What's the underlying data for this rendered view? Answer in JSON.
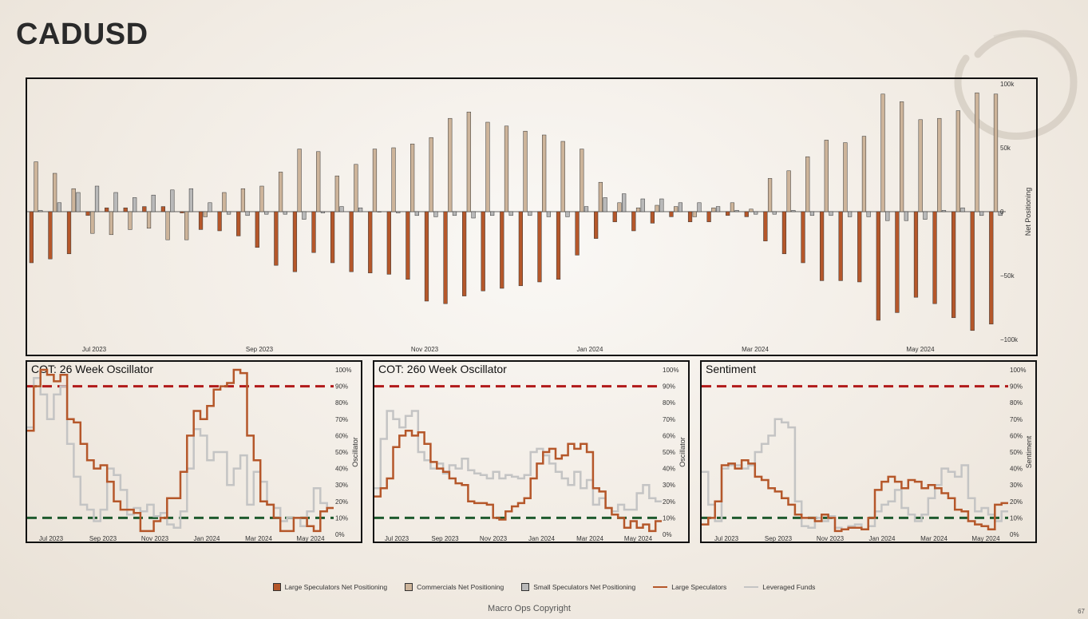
{
  "page": {
    "title": "CADUSD",
    "footer": "Macro Ops Copyright",
    "page_number": "67"
  },
  "colors": {
    "large": "#b5572a",
    "commercial": "#cdb49a",
    "small": "#b9b9b9",
    "leveraged": "#c4c4c4",
    "high": "#b11a1a",
    "low": "#1e5a2e"
  },
  "legend": [
    {
      "label": "Large Speculators Net Positioning",
      "kind": "box",
      "color": "#b5572a"
    },
    {
      "label": "Commercials Net Positioning",
      "kind": "box",
      "color": "#cdb49a"
    },
    {
      "label": "Small Speculators Net Positioning",
      "kind": "box",
      "color": "#b9b9b9"
    },
    {
      "label": "Large Speculators",
      "kind": "line",
      "color": "#b5572a"
    },
    {
      "label": "Leveraged Funds",
      "kind": "line",
      "color": "#c4c4c4"
    }
  ],
  "chart_data": [
    {
      "type": "bar",
      "ylabel": "Net Positioning",
      "y_ticks": [
        "100k",
        "50k",
        "0",
        "−50k",
        "−100k"
      ],
      "ylim": [
        -100000,
        100000
      ],
      "x_ticks": [
        "Jul 2023",
        "Sep 2023",
        "Nov 2023",
        "Jan 2024",
        "Mar 2024",
        "May 2024"
      ],
      "series": [
        {
          "name": "Large Speculators Net Positioning",
          "values": [
            -40000,
            -37000,
            -33000,
            -3000,
            3000,
            3000,
            4000,
            4000,
            -1000,
            -14000,
            -15000,
            -19000,
            -28000,
            -42000,
            -47000,
            -32000,
            -40000,
            -47000,
            -48000,
            -49000,
            -53000,
            -70000,
            -72000,
            -66000,
            -62000,
            -60000,
            -58000,
            -55000,
            -53000,
            -34000,
            -21000,
            -8000,
            -15000,
            -9000,
            -4000,
            -8000,
            -8000,
            -3000,
            -4000,
            -23000,
            -33000,
            -40000,
            -54000,
            -54000,
            -55000,
            -85000,
            -79000,
            -67000,
            -72000,
            -83000,
            -93000,
            -88000
          ]
        },
        {
          "name": "Commercials Net Positioning",
          "values": [
            39000,
            30000,
            18000,
            -17000,
            -18000,
            -14000,
            -13000,
            -22000,
            -22000,
            -4000,
            15000,
            18000,
            20000,
            31000,
            49000,
            47000,
            28000,
            37000,
            49000,
            50000,
            53000,
            58000,
            73000,
            78000,
            70000,
            67000,
            63000,
            60000,
            55000,
            49000,
            23000,
            7000,
            3000,
            5000,
            4000,
            -4000,
            3000,
            7000,
            2000,
            26000,
            32000,
            43000,
            56000,
            54000,
            59000,
            92000,
            86000,
            72000,
            73000,
            79000,
            93000,
            92000
          ]
        },
        {
          "name": "Small Speculators Net Positioning",
          "values": [
            1000,
            7000,
            15000,
            20000,
            15000,
            11000,
            13000,
            17000,
            18000,
            7000,
            -2000,
            -3000,
            -2000,
            -2000,
            -6000,
            -1000,
            4000,
            3000,
            0,
            -1000,
            -3000,
            -4000,
            -3000,
            -5000,
            -3000,
            -3000,
            -3000,
            -4000,
            -4000,
            4000,
            11000,
            14000,
            10000,
            10000,
            7000,
            7000,
            4000,
            1000,
            -2000,
            -2000,
            1000,
            -3000,
            -3000,
            -4000,
            -4000,
            -7000,
            -7000,
            -6000,
            1000,
            3000,
            -3000,
            -3000
          ]
        }
      ]
    },
    {
      "type": "line",
      "title": "COT: 26 Week Oscillator",
      "ylabel": "Oscillator",
      "y_ticks": [
        "100%",
        "90%",
        "80%",
        "70%",
        "60%",
        "50%",
        "40%",
        "30%",
        "20%",
        "10%",
        "0%"
      ],
      "x_ticks": [
        "Jul 2023",
        "Sep 2023",
        "Nov 2023",
        "Jan 2024",
        "Mar 2024",
        "May 2024"
      ],
      "ylim": [
        0,
        100
      ],
      "thresholds": [
        90,
        10
      ],
      "series": [
        {
          "name": "Large Speculators",
          "values": [
            63,
            90,
            100,
            97,
            93,
            97,
            70,
            68,
            55,
            45,
            40,
            42,
            32,
            20,
            15,
            15,
            13,
            2,
            2,
            8,
            10,
            22,
            22,
            38,
            60,
            75,
            70,
            78,
            88,
            90,
            92,
            100,
            98,
            60,
            45,
            20,
            18,
            10,
            2,
            2,
            10,
            10,
            5,
            2,
            14,
            16
          ]
        },
        {
          "name": "Leveraged Funds",
          "values": [
            65,
            95,
            85,
            70,
            85,
            90,
            55,
            35,
            18,
            15,
            8,
            15,
            40,
            36,
            27,
            12,
            16,
            14,
            18,
            11,
            13,
            6,
            4,
            14,
            40,
            64,
            60,
            45,
            50,
            50,
            30,
            40,
            48,
            18,
            38,
            32,
            18,
            16,
            8,
            10,
            10,
            5,
            14,
            28,
            19,
            16
          ]
        }
      ]
    },
    {
      "type": "line",
      "title": "COT: 260 Week Oscillator",
      "ylabel": "Oscillator",
      "y_ticks": [
        "100%",
        "90%",
        "80%",
        "70%",
        "60%",
        "50%",
        "40%",
        "30%",
        "20%",
        "10%",
        "0%"
      ],
      "x_ticks": [
        "Jul 2023",
        "Sep 2023",
        "Nov 2023",
        "Jan 2024",
        "Mar 2024",
        "May 2024"
      ],
      "ylim": [
        0,
        100
      ],
      "thresholds": [
        90,
        10
      ],
      "series": [
        {
          "name": "Large Speculators",
          "values": [
            23,
            28,
            34,
            53,
            60,
            63,
            60,
            62,
            55,
            44,
            40,
            38,
            34,
            31,
            30,
            20,
            19,
            19,
            18,
            10,
            9,
            14,
            17,
            19,
            22,
            34,
            43,
            50,
            52,
            46,
            48,
            55,
            52,
            55,
            50,
            28,
            26,
            16,
            12,
            10,
            4,
            8,
            4,
            6,
            2,
            8
          ]
        },
        {
          "name": "Leveraged Funds",
          "values": [
            28,
            58,
            75,
            70,
            65,
            72,
            75,
            50,
            45,
            40,
            43,
            37,
            42,
            40,
            46,
            39,
            37,
            36,
            34,
            38,
            34,
            36,
            35,
            34,
            36,
            50,
            52,
            48,
            43,
            38,
            34,
            30,
            38,
            28,
            33,
            18,
            22,
            16,
            14,
            18,
            15,
            15,
            25,
            30,
            22,
            20
          ]
        }
      ]
    },
    {
      "type": "line",
      "title": "Sentiment",
      "ylabel": "Sentiment",
      "y_ticks": [
        "100%",
        "90%",
        "80%",
        "70%",
        "60%",
        "50%",
        "40%",
        "30%",
        "20%",
        "10%",
        "0%"
      ],
      "x_ticks": [
        "Jul 2023",
        "Sep 2023",
        "Nov 2023",
        "Jan 2024",
        "Mar 2024",
        "May 2024"
      ],
      "ylim": [
        0,
        100
      ],
      "thresholds": [
        90,
        10
      ],
      "series": [
        {
          "name": "Large Speculators",
          "values": [
            6,
            10,
            20,
            42,
            43,
            40,
            45,
            43,
            35,
            33,
            28,
            26,
            22,
            18,
            12,
            10,
            10,
            8,
            12,
            10,
            2,
            3,
            4,
            4,
            3,
            10,
            27,
            32,
            35,
            32,
            28,
            33,
            32,
            28,
            30,
            28,
            25,
            22,
            15,
            14,
            8,
            6,
            5,
            3,
            18,
            19
          ]
        },
        {
          "name": "Leveraged Funds",
          "values": [
            38,
            18,
            8,
            40,
            42,
            42,
            40,
            42,
            50,
            55,
            60,
            70,
            68,
            65,
            20,
            5,
            4,
            10,
            8,
            11,
            4,
            3,
            5,
            6,
            3,
            5,
            14,
            18,
            20,
            27,
            16,
            12,
            8,
            12,
            22,
            30,
            40,
            38,
            35,
            42,
            22,
            14,
            16,
            12,
            8,
            14
          ]
        }
      ]
    }
  ]
}
